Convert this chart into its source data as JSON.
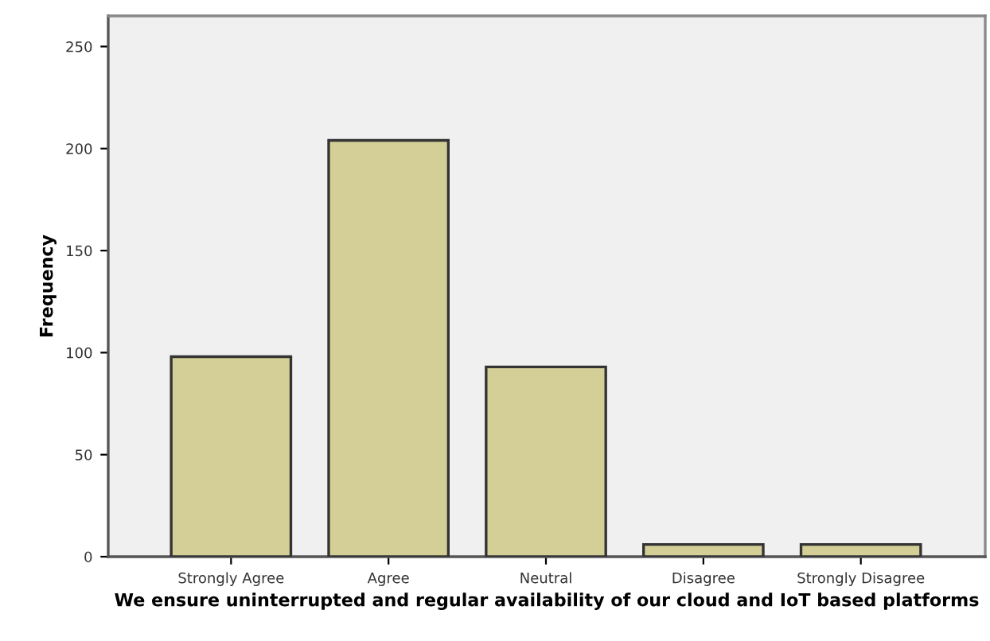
{
  "chart_data": {
    "type": "bar",
    "xlabel": "We ensure uninterrupted and regular availability of our cloud and IoT based platforms",
    "ylabel": "Frequency",
    "categories": [
      "Strongly Agree",
      "Agree",
      "Neutral",
      "Disagree",
      "Strongly Disagree"
    ],
    "values": [
      98,
      204,
      93,
      6,
      6
    ],
    "color": "#d3cf97",
    "ylim": [
      0,
      265
    ],
    "yticks": [
      0,
      50,
      100,
      150,
      200,
      250
    ],
    "grid": false
  }
}
